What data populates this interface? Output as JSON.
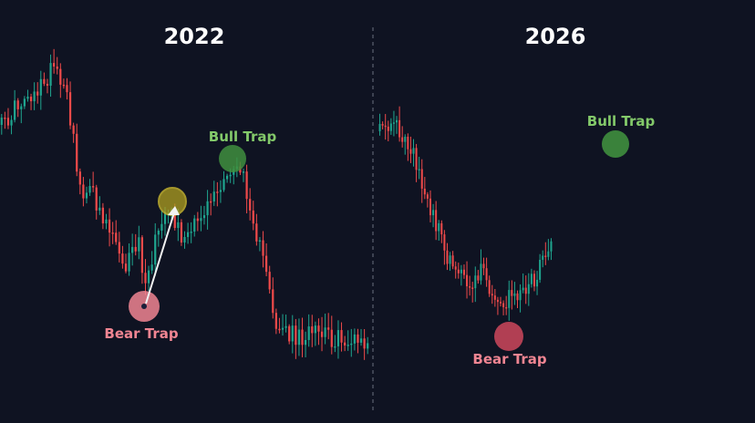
{
  "chart_data": {
    "type": "candlestick",
    "colors": {
      "up": "#1fa58f",
      "down": "#ef4a4a",
      "background": "#0f1322",
      "divider": "#6b7080",
      "bull": "#83c96a",
      "bear": "#f08592",
      "bull_marker": "#3f8f3e",
      "bear_marker": "#d94b60",
      "yellow_marker": "#b0a020"
    },
    "panels": [
      {
        "title": "2022",
        "annotations": [
          {
            "label": "Bear Trap",
            "kind": "bear",
            "candle": 44
          },
          {
            "label": "Bull Trap",
            "kind": "bull",
            "candle": 72
          }
        ]
      },
      {
        "title": "2026",
        "annotations": [
          {
            "label": "Bear Trap",
            "kind": "bear",
            "candle": 42
          },
          {
            "label": "Bull Trap",
            "kind": "bull",
            "candle": 85
          }
        ]
      }
    ]
  }
}
